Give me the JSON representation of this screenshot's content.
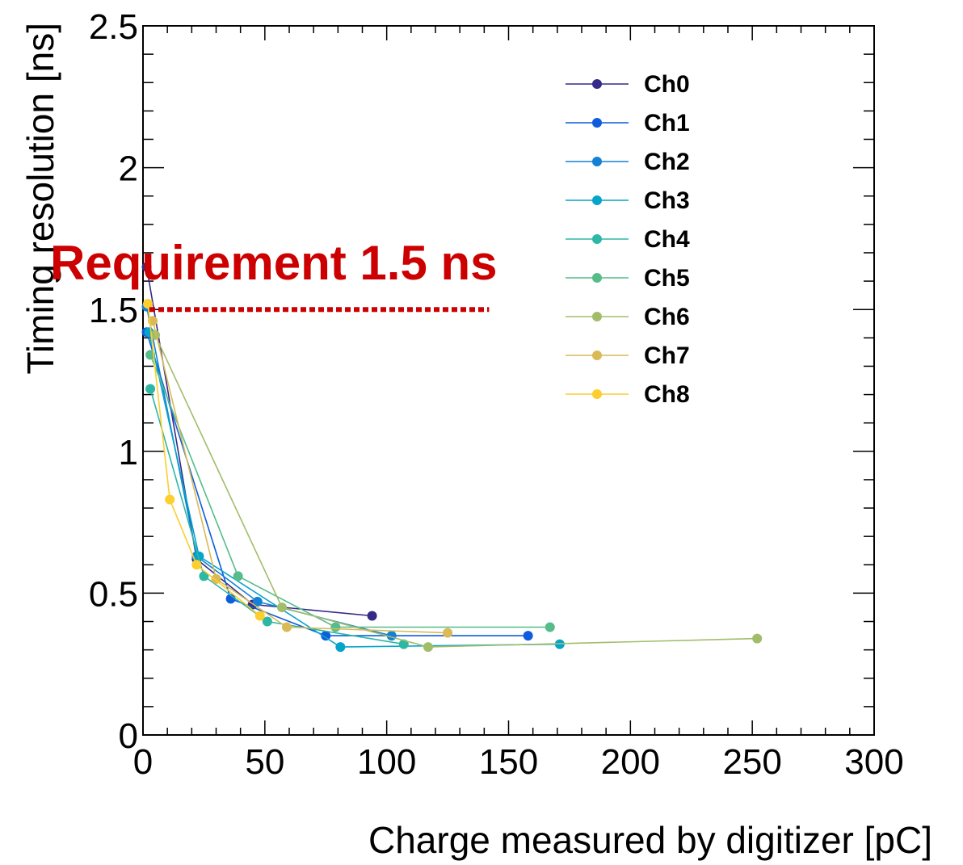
{
  "chart_data": {
    "type": "line",
    "title": "",
    "xlabel": "Charge measured by digitizer [pC]",
    "ylabel": "Timing resolution [ns]",
    "xlim": [
      0,
      300
    ],
    "ylim": [
      0,
      2.5
    ],
    "x_ticks": [
      "0",
      "50",
      "100",
      "150",
      "200",
      "250",
      "300"
    ],
    "y_ticks": [
      "0",
      "0.5",
      "1",
      "1.5",
      "2",
      "2.5"
    ],
    "grid": false,
    "legend_position": "top-right",
    "annotation": {
      "text": "Requirement 1.5 ns",
      "y": 1.5,
      "x_range": [
        0,
        142
      ],
      "color": "#cc0000"
    },
    "series": [
      {
        "name": "Ch0",
        "color": "#352a87",
        "points": [
          [
            1.5,
            1.65
          ],
          [
            22,
            0.62
          ],
          [
            45,
            0.46
          ],
          [
            94,
            0.42
          ]
        ]
      },
      {
        "name": "Ch1",
        "color": "#0f5cdd",
        "points": [
          [
            1.5,
            1.42
          ],
          [
            36,
            0.48
          ],
          [
            75,
            0.35
          ],
          [
            158,
            0.35
          ]
        ]
      },
      {
        "name": "Ch2",
        "color": "#1481d6",
        "points": [
          [
            1.5,
            1.51
          ],
          [
            22,
            0.63
          ],
          [
            47,
            0.47
          ],
          [
            102,
            0.35
          ]
        ]
      },
      {
        "name": "Ch3",
        "color": "#06a4ca",
        "points": [
          [
            2.5,
            1.42
          ],
          [
            23,
            0.63
          ],
          [
            81,
            0.31
          ],
          [
            171,
            0.32
          ]
        ]
      },
      {
        "name": "Ch4",
        "color": "#2eb7a4",
        "points": [
          [
            3,
            1.22
          ],
          [
            25,
            0.56
          ],
          [
            51,
            0.4
          ],
          [
            107,
            0.32
          ]
        ]
      },
      {
        "name": "Ch5",
        "color": "#56bc8a",
        "points": [
          [
            3,
            1.34
          ],
          [
            39,
            0.56
          ],
          [
            79,
            0.38
          ],
          [
            167,
            0.38
          ]
        ]
      },
      {
        "name": "Ch6",
        "color": "#a2bd6a",
        "points": [
          [
            5,
            1.41
          ],
          [
            57,
            0.45
          ],
          [
            117,
            0.31
          ],
          [
            252,
            0.34
          ]
        ]
      },
      {
        "name": "Ch7",
        "color": "#d9ba56",
        "points": [
          [
            4,
            1.46
          ],
          [
            30,
            0.55
          ],
          [
            59,
            0.38
          ],
          [
            125,
            0.36
          ]
        ]
      },
      {
        "name": "Ch8",
        "color": "#fcce2e",
        "points": [
          [
            2,
            1.52
          ],
          [
            11,
            0.83
          ],
          [
            22,
            0.6
          ],
          [
            48,
            0.42
          ]
        ]
      }
    ]
  }
}
